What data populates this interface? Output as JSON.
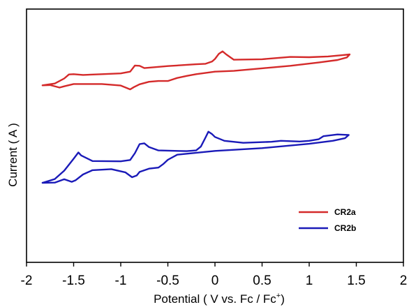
{
  "chart_data": {
    "type": "line",
    "title": "",
    "xlabel_parts": [
      "Potential ( V  vs. Fc / Fc",
      "+",
      ")"
    ],
    "ylabel": "Current ( A )",
    "xlim": [
      -2,
      2
    ],
    "xticks": [
      -2,
      -1.5,
      -1,
      -0.5,
      0,
      0.5,
      1,
      1.5,
      2
    ],
    "xtick_labels": [
      "-2",
      "-1.5",
      "-1",
      "-0.5",
      "0",
      "0.5",
      "1",
      "1.5",
      "2"
    ],
    "y_tick_labels_shown": false,
    "ylim": [
      0,
      100
    ],
    "grid": false,
    "legend_position": "bottom-right",
    "series": [
      {
        "name": "CR2a",
        "color": "#d42a2a",
        "points": [
          [
            -1.83,
            69.9
          ],
          [
            -1.7,
            70.6
          ],
          [
            -1.6,
            72.6
          ],
          [
            -1.55,
            74.2
          ],
          [
            -1.5,
            74.3
          ],
          [
            -1.4,
            74.0
          ],
          [
            -1.2,
            74.3
          ],
          [
            -1.0,
            74.6
          ],
          [
            -0.9,
            75.3
          ],
          [
            -0.85,
            77.7
          ],
          [
            -0.8,
            77.6
          ],
          [
            -0.75,
            76.7
          ],
          [
            -0.5,
            77.5
          ],
          [
            -0.2,
            78.2
          ],
          [
            -0.1,
            78.4
          ],
          [
            -0.03,
            79.3
          ],
          [
            0.0,
            80.3
          ],
          [
            0.04,
            82.3
          ],
          [
            0.08,
            83.3
          ],
          [
            0.12,
            82.1
          ],
          [
            0.2,
            80.0
          ],
          [
            0.5,
            80.2
          ],
          [
            0.8,
            81.1
          ],
          [
            1.0,
            81.0
          ],
          [
            1.2,
            81.3
          ],
          [
            1.35,
            81.8
          ],
          [
            1.43,
            82.1
          ],
          [
            1.4,
            80.9
          ],
          [
            1.3,
            79.9
          ],
          [
            1.1,
            78.9
          ],
          [
            0.8,
            77.6
          ],
          [
            0.5,
            76.6
          ],
          [
            0.2,
            75.6
          ],
          [
            0.0,
            75.3
          ],
          [
            -0.2,
            74.3
          ],
          [
            -0.3,
            73.6
          ],
          [
            -0.4,
            72.8
          ],
          [
            -0.45,
            72.2
          ],
          [
            -0.5,
            71.6
          ],
          [
            -0.6,
            71.6
          ],
          [
            -0.7,
            71.3
          ],
          [
            -0.8,
            70.3
          ],
          [
            -0.86,
            69.2
          ],
          [
            -0.9,
            68.3
          ],
          [
            -1.0,
            69.8
          ],
          [
            -1.2,
            70.4
          ],
          [
            -1.5,
            70.4
          ],
          [
            -1.6,
            69.5
          ],
          [
            -1.65,
            69.0
          ],
          [
            -1.75,
            70.0
          ],
          [
            -1.83,
            69.9
          ]
        ]
      },
      {
        "name": "CR2b",
        "color": "#1a1ab8",
        "points": [
          [
            -1.83,
            31.4
          ],
          [
            -1.7,
            32.9
          ],
          [
            -1.6,
            36.2
          ],
          [
            -1.5,
            40.9
          ],
          [
            -1.45,
            43.4
          ],
          [
            -1.42,
            42.2
          ],
          [
            -1.3,
            40.0
          ],
          [
            -1.0,
            39.9
          ],
          [
            -0.9,
            40.4
          ],
          [
            -0.85,
            43.1
          ],
          [
            -0.8,
            46.7
          ],
          [
            -0.75,
            47.0
          ],
          [
            -0.7,
            45.5
          ],
          [
            -0.6,
            44.2
          ],
          [
            -0.3,
            43.9
          ],
          [
            -0.2,
            44.2
          ],
          [
            -0.15,
            45.7
          ],
          [
            -0.1,
            49.3
          ],
          [
            -0.07,
            51.6
          ],
          [
            -0.03,
            50.6
          ],
          [
            0.0,
            49.5
          ],
          [
            0.1,
            48.0
          ],
          [
            0.3,
            47.2
          ],
          [
            0.6,
            47.6
          ],
          [
            0.7,
            48.0
          ],
          [
            0.9,
            47.7
          ],
          [
            1.0,
            48.0
          ],
          [
            1.1,
            48.6
          ],
          [
            1.15,
            49.8
          ],
          [
            1.3,
            50.5
          ],
          [
            1.42,
            50.3
          ],
          [
            1.38,
            49.0
          ],
          [
            1.25,
            48.0
          ],
          [
            1.0,
            46.8
          ],
          [
            0.5,
            45.1
          ],
          [
            0.0,
            44.0
          ],
          [
            -0.4,
            42.5
          ],
          [
            -0.5,
            40.5
          ],
          [
            -0.55,
            38.8
          ],
          [
            -0.6,
            37.4
          ],
          [
            -0.7,
            37.0
          ],
          [
            -0.8,
            35.7
          ],
          [
            -0.83,
            34.3
          ],
          [
            -0.88,
            33.6
          ],
          [
            -0.95,
            35.5
          ],
          [
            -1.1,
            36.8
          ],
          [
            -1.3,
            36.4
          ],
          [
            -1.4,
            34.7
          ],
          [
            -1.48,
            32.4
          ],
          [
            -1.52,
            31.8
          ],
          [
            -1.6,
            32.8
          ],
          [
            -1.7,
            31.5
          ],
          [
            -1.83,
            31.4
          ]
        ]
      }
    ]
  }
}
